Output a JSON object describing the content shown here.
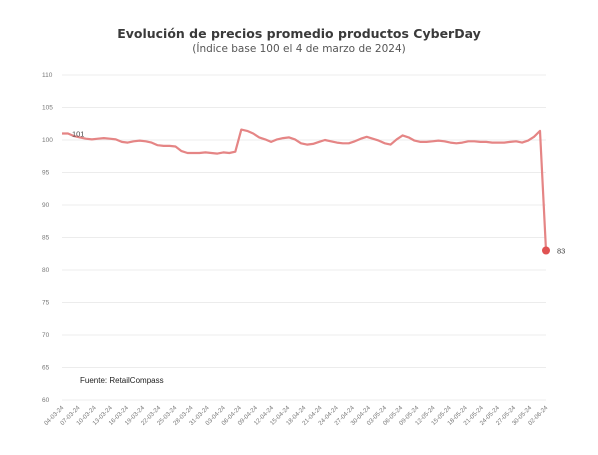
{
  "chart_data": {
    "type": "line",
    "title": "Evolución de precios promedio productos CyberDay",
    "subtitle": "(Índice base 100 el 4 de marzo de 2024)",
    "source": "Fuente: RetailCompass",
    "ylim": [
      60,
      110
    ],
    "yticks": [
      "60",
      "65",
      "70",
      "75",
      "80",
      "85",
      "90",
      "95",
      "100",
      "105",
      "110"
    ],
    "grid": true,
    "x_tick_labels": [
      "04-03-24",
      "07-03-24",
      "10-03-24",
      "13-03-24",
      "16-03-24",
      "19-03-24",
      "22-03-24",
      "25-03-24",
      "28-03-24",
      "31-03-24",
      "03-04-24",
      "06-04-24",
      "09-04-24",
      "12-04-24",
      "15-04-24",
      "18-04-24",
      "21-04-24",
      "24-04-24",
      "27-04-24",
      "30-04-24",
      "03-05-24",
      "06-05-24",
      "09-05-24",
      "12-05-24",
      "15-05-24",
      "18-05-24",
      "21-05-24",
      "24-05-24",
      "27-05-24",
      "30-05-24",
      "02-06-24"
    ],
    "series": [
      {
        "color": "#e58585",
        "values": [
          101,
          101,
          100.6,
          100.4,
          100.2,
          100.1,
          100.2,
          100.3,
          100.2,
          100.1,
          99.7,
          99.6,
          99.8,
          99.9,
          99.8,
          99.6,
          99.2,
          99.1,
          99.1,
          99.0,
          98.3,
          98.0,
          98.0,
          98.0,
          98.1,
          98.0,
          97.9,
          98.1,
          98.0,
          98.2,
          101.6,
          101.4,
          101.0,
          100.4,
          100.1,
          99.7,
          100.1,
          100.3,
          100.4,
          100.1,
          99.5,
          99.3,
          99.4,
          99.7,
          100.0,
          99.8,
          99.6,
          99.5,
          99.5,
          99.8,
          100.2,
          100.5,
          100.2,
          99.9,
          99.5,
          99.3,
          100.1,
          100.7,
          100.4,
          99.9,
          99.7,
          99.7,
          99.8,
          99.9,
          99.8,
          99.6,
          99.5,
          99.6,
          99.8,
          99.8,
          99.7,
          99.7,
          99.6,
          99.6,
          99.6,
          99.7,
          99.8,
          99.6,
          99.9,
          100.5,
          101.4,
          83
        ]
      }
    ],
    "labels": {
      "first": "101",
      "last": "83"
    }
  }
}
